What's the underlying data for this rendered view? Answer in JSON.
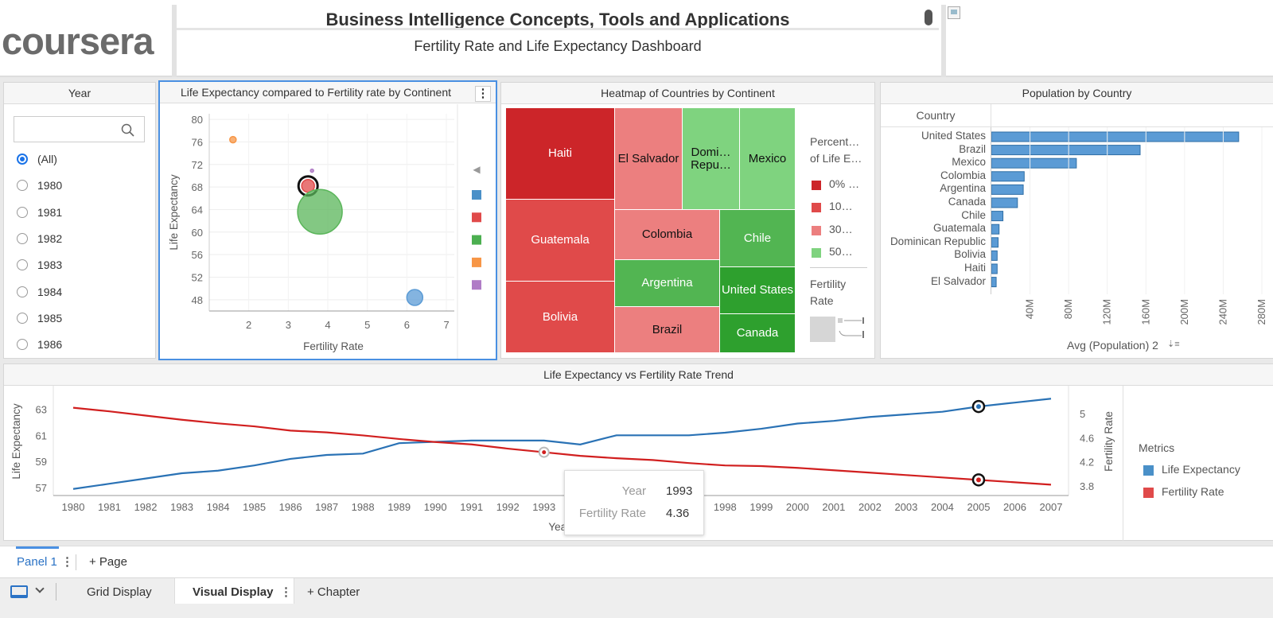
{
  "header": {
    "course_title": "Business Intelligence Concepts, Tools and Applications",
    "logo_text": "coursera",
    "dashboard_title": "Fertility Rate and Life Expectancy Dashboard"
  },
  "year_filter": {
    "title": "Year",
    "search_placeholder": "",
    "options": [
      "(All)",
      "1980",
      "1981",
      "1982",
      "1983",
      "1984",
      "1985",
      "1986"
    ],
    "selected": "(All)"
  },
  "bubble_chart": {
    "title": "Life Expectancy compared to Fertility rate by Continent",
    "menu_glyph": "⋮",
    "legend_arrow": "◀",
    "chart_data": {
      "type": "scatter",
      "xlabel": "Fertility Rate",
      "ylabel": "Life Expectancy",
      "x_ticks": [
        2,
        3,
        4,
        5,
        6,
        7
      ],
      "y_ticks": [
        48,
        52,
        56,
        60,
        64,
        68,
        72,
        76,
        80
      ],
      "xlim": [
        1.0,
        7.2
      ],
      "ylim": [
        46,
        81
      ],
      "points": [
        {
          "x": 1.6,
          "y": 76.4,
          "size": 4,
          "color": "#f79646"
        },
        {
          "x": 3.6,
          "y": 70.9,
          "size": 2,
          "color": "#b07cc6"
        },
        {
          "x": 3.5,
          "y": 68.2,
          "size": 8,
          "color": "#e04a4a"
        },
        {
          "x": 3.8,
          "y": 63.6,
          "size": 28,
          "color": "#5ab55a"
        },
        {
          "x": 6.2,
          "y": 48.4,
          "size": 10,
          "color": "#5b9bd5"
        }
      ],
      "legend_colors": [
        "#4a90c8",
        "#e04a4a",
        "#4caf50",
        "#f79646",
        "#b07cc6"
      ]
    }
  },
  "heatmap": {
    "title": "Heatmap of Countries by Continent",
    "cells": [
      {
        "label": "Haiti",
        "color": "#cc2529",
        "text_color": "#ffffff"
      },
      {
        "label": "Guatemala",
        "color": "#e04a4a",
        "text_color": "#ffffff"
      },
      {
        "label": "Bolivia",
        "color": "#e04a4a",
        "text_color": "#ffffff"
      },
      {
        "label": "El Salvador",
        "color": "#ec7f7f",
        "text_color": "#111111"
      },
      {
        "label": "Domi… Repu…",
        "color": "#7fd37f",
        "text_color": "#111111"
      },
      {
        "label": "Mexico",
        "color": "#7fd37f",
        "text_color": "#111111"
      },
      {
        "label": "Colombia",
        "color": "#ec7f7f",
        "text_color": "#111111"
      },
      {
        "label": "Chile",
        "color": "#52b552",
        "text_color": "#ffffff"
      },
      {
        "label": "Argentina",
        "color": "#52b552",
        "text_color": "#ffffff"
      },
      {
        "label": "United States",
        "color": "#2ea02e",
        "text_color": "#ffffff"
      },
      {
        "label": "Brazil",
        "color": "#ec7f7f",
        "text_color": "#111111"
      },
      {
        "label": "Canada",
        "color": "#2ea02e",
        "text_color": "#ffffff"
      }
    ],
    "legend_title_1": "Percent…",
    "legend_title_2": "of Life E…",
    "legend_items": [
      {
        "label": "0% …",
        "color": "#cc2529"
      },
      {
        "label": "10…",
        "color": "#e04a4a"
      },
      {
        "label": "30…",
        "color": "#ec7f7f"
      },
      {
        "label": "50…",
        "color": "#7fd37f"
      }
    ],
    "size_legend_title_1": "Fertility",
    "size_legend_title_2": "Rate"
  },
  "population": {
    "title": "Population by Country",
    "column_header": "Country",
    "chart_data": {
      "type": "bar",
      "orientation": "horizontal",
      "categories": [
        "United States",
        "Brazil",
        "Mexico",
        "Colombia",
        "Argentina",
        "Canada",
        "Chile",
        "Guatemala",
        "Dominican Republic",
        "Bolivia",
        "Haiti",
        "El Salvador"
      ],
      "values": [
        256,
        154,
        88,
        34,
        33,
        27,
        12,
        8,
        7,
        6,
        6,
        5
      ],
      "unit": "M",
      "xlabel": "Avg (Population) 2",
      "x_ticks": [
        "40M",
        "80M",
        "120M",
        "160M",
        "200M",
        "240M",
        "280M"
      ],
      "x_tick_values": [
        40,
        80,
        120,
        160,
        200,
        240,
        280
      ],
      "color": "#5b9bd5"
    },
    "sort_glyph": "⇣≡"
  },
  "trend": {
    "title": "Life Expectancy vs Fertility Rate Trend",
    "chart_data": {
      "type": "line",
      "x": [
        1980,
        1981,
        1982,
        1983,
        1984,
        1985,
        1986,
        1987,
        1988,
        1989,
        1990,
        1991,
        1992,
        1993,
        1994,
        1995,
        1996,
        1997,
        1998,
        1999,
        2000,
        2001,
        2002,
        2003,
        2004,
        2005,
        2006,
        2007
      ],
      "x_tick_labels": [
        "1980",
        "1981",
        "1982",
        "1983",
        "1984",
        "1985",
        "1986",
        "1987",
        "1988",
        "1989",
        "1990",
        "1991",
        "1992",
        "1993",
        "",
        "",
        "",
        "",
        "1998",
        "1999",
        "2000",
        "2001",
        "2002",
        "2003",
        "2004",
        "2005",
        "2006",
        "2007"
      ],
      "xlabel": "Year",
      "y_left_label": "Life Expectancy",
      "y_left_ticks": [
        57,
        59,
        61,
        63
      ],
      "y_left_lim": [
        56.4,
        64.3
      ],
      "y_right_label": "Fertility Rate",
      "y_right_ticks": [
        3.8,
        4.2,
        4.6,
        5
      ],
      "y_right_lim": [
        3.64,
        5.36
      ],
      "series": [
        {
          "name": "Life Expectancy",
          "axis": "left",
          "color": "#2a72b5",
          "values": [
            56.9,
            57.3,
            57.7,
            58.1,
            58.3,
            58.7,
            59.2,
            59.5,
            59.6,
            60.4,
            60.5,
            60.6,
            60.6,
            60.6,
            60.3,
            61.0,
            61.0,
            61.0,
            61.2,
            61.5,
            61.9,
            62.1,
            62.4,
            62.6,
            62.8,
            63.2,
            63.5,
            63.8
          ]
        },
        {
          "name": "Fertility Rate",
          "axis": "right",
          "color": "#d11f1f",
          "values": [
            5.1,
            5.04,
            4.97,
            4.9,
            4.84,
            4.79,
            4.72,
            4.69,
            4.64,
            4.58,
            4.53,
            4.49,
            4.42,
            4.36,
            4.3,
            4.26,
            4.23,
            4.18,
            4.14,
            4.13,
            4.1,
            4.06,
            4.02,
            3.98,
            3.94,
            3.9,
            3.86,
            3.82
          ]
        }
      ]
    },
    "legend_title": "Metrics",
    "tooltip": {
      "year_label": "Year",
      "year_value": "1993",
      "metric_label": "Fertility Rate",
      "metric_value": "4.36"
    }
  },
  "footer": {
    "panel_tab": "Panel 1",
    "menu_glyph": "⋮",
    "add_page": "+ Page",
    "grid_display": "Grid Display",
    "visual_display": "Visual Display",
    "add_chapter": "+ Chapter"
  }
}
